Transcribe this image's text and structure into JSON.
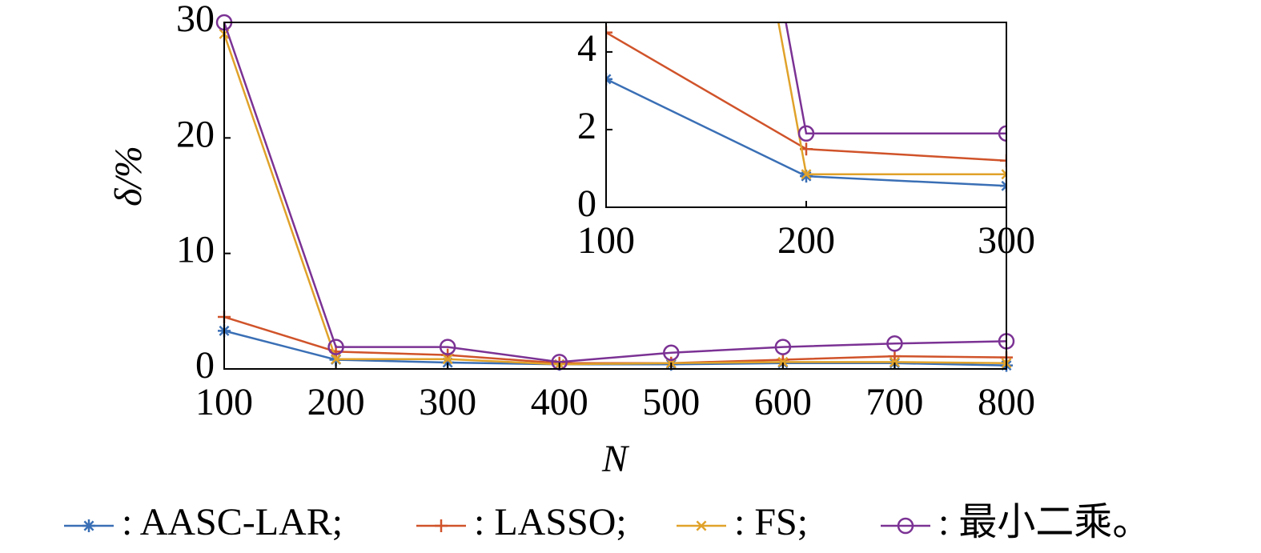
{
  "chart_data": [
    {
      "type": "line",
      "xlabel": "N",
      "ylabel": "δ/%",
      "x": [
        100,
        200,
        300,
        400,
        500,
        600,
        700,
        800
      ],
      "xlim": [
        100,
        800
      ],
      "xticks": [
        100,
        200,
        300,
        400,
        500,
        600,
        700,
        800
      ],
      "ylim": [
        0,
        30
      ],
      "yticks": [
        0,
        10,
        20,
        30
      ],
      "series": [
        {
          "name": ": AASC-LAR;",
          "color": "#3a6fb5",
          "marker": "star",
          "values": [
            3.3,
            0.8,
            0.55,
            0.4,
            0.4,
            0.5,
            0.5,
            0.3
          ]
        },
        {
          "name": ": LASSO;",
          "color": "#d0532a",
          "marker": "plus",
          "values": [
            4.5,
            1.5,
            1.2,
            0.5,
            0.5,
            0.8,
            1.1,
            1.0
          ]
        },
        {
          "name": ": FS;",
          "color": "#e0a22a",
          "marker": "x",
          "values": [
            29,
            0.85,
            0.85,
            0.4,
            0.5,
            0.6,
            0.6,
            0.5
          ]
        },
        {
          "name": ": 最小二乘。",
          "color": "#7b3294",
          "marker": "circle",
          "values": [
            30,
            1.9,
            1.9,
            0.6,
            1.4,
            1.9,
            2.2,
            2.4
          ]
        }
      ]
    },
    {
      "type": "line",
      "xlim": [
        100,
        300
      ],
      "xticks": [
        100,
        200,
        300
      ],
      "ylim": [
        0,
        4.76
      ],
      "yticks": [
        0,
        2,
        4
      ]
    }
  ]
}
